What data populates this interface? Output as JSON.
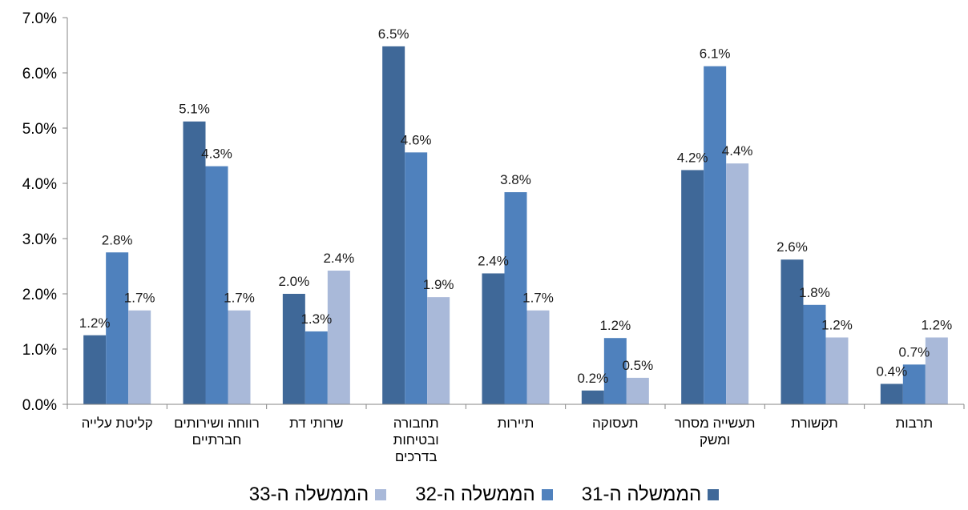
{
  "chart_data": {
    "type": "bar",
    "title": "",
    "xlabel": "",
    "ylabel": "",
    "ylim": [
      0,
      7
    ],
    "yticks": [
      "0.0%",
      "1.0%",
      "2.0%",
      "3.0%",
      "4.0%",
      "5.0%",
      "6.0%",
      "7.0%"
    ],
    "grid": false,
    "legend_position": "bottom",
    "categories": [
      [
        "קליטת עלייה"
      ],
      [
        "רווחה ושירותים",
        "חברתיים"
      ],
      [
        "שרותי דת"
      ],
      [
        "תחבורה",
        "ובטיחות",
        "בדרכים"
      ],
      [
        "תיירות"
      ],
      [
        "תעסוקה"
      ],
      [
        "תעשייה מסחר",
        "ומשק"
      ],
      [
        "תקשורת"
      ],
      [
        "תרבות"
      ]
    ],
    "series": [
      {
        "name": "הממשלה ה-31",
        "color": "#3f6898",
        "values": [
          1.25,
          5.12,
          2.0,
          6.48,
          2.37,
          0.25,
          4.24,
          2.62,
          0.37
        ],
        "labels": [
          "1.2%",
          "5.1%",
          "2.0%",
          "6.5%",
          "2.4%",
          "0.2%",
          "4.2%",
          "2.6%",
          "0.4%"
        ]
      },
      {
        "name": "הממשלה ה-32",
        "color": "#4f81bd",
        "values": [
          2.75,
          4.31,
          1.32,
          4.56,
          3.84,
          1.2,
          6.12,
          1.8,
          0.72
        ],
        "labels": [
          "2.8%",
          "4.3%",
          "1.3%",
          "4.6%",
          "3.8%",
          "1.2%",
          "6.1%",
          "1.8%",
          "0.7%"
        ]
      },
      {
        "name": "הממשלה ה-33",
        "color": "#a9b9d9",
        "values": [
          1.7,
          1.7,
          2.42,
          1.94,
          1.7,
          0.48,
          4.36,
          1.21,
          1.21
        ],
        "labels": [
          "1.7%",
          "1.7%",
          "2.4%",
          "1.9%",
          "1.7%",
          "0.5%",
          "4.4%",
          "1.2%",
          "1.2%"
        ]
      }
    ]
  }
}
